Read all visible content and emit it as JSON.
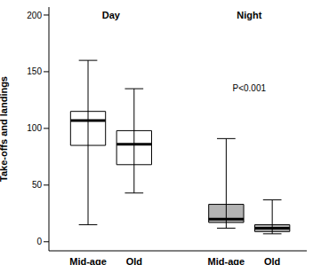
{
  "chart_data": {
    "type": "box",
    "y_label": "Take-offs and landings",
    "annotation": "P<0.001",
    "ylim": [
      -8,
      207
    ],
    "yticks": [
      0,
      50,
      100,
      150,
      200
    ],
    "groups": [
      {
        "name": "Day",
        "color": "#ffffff",
        "categories": [
          "Mid-age",
          "Old"
        ],
        "boxes": [
          {
            "min": 15,
            "q1": 85,
            "median": 107,
            "q3": 115,
            "max": 160
          },
          {
            "min": 43,
            "q1": 68,
            "median": 86,
            "q3": 98,
            "max": 135
          }
        ]
      },
      {
        "name": "Night",
        "color": "#b3b3b3",
        "categories": [
          "Mid-age",
          "Old"
        ],
        "boxes": [
          {
            "min": 12,
            "q1": 17,
            "median": 20,
            "q3": 33,
            "max": 91
          },
          {
            "min": 7,
            "q1": 9,
            "median": 12,
            "q3": 15,
            "max": 37
          }
        ]
      }
    ]
  }
}
